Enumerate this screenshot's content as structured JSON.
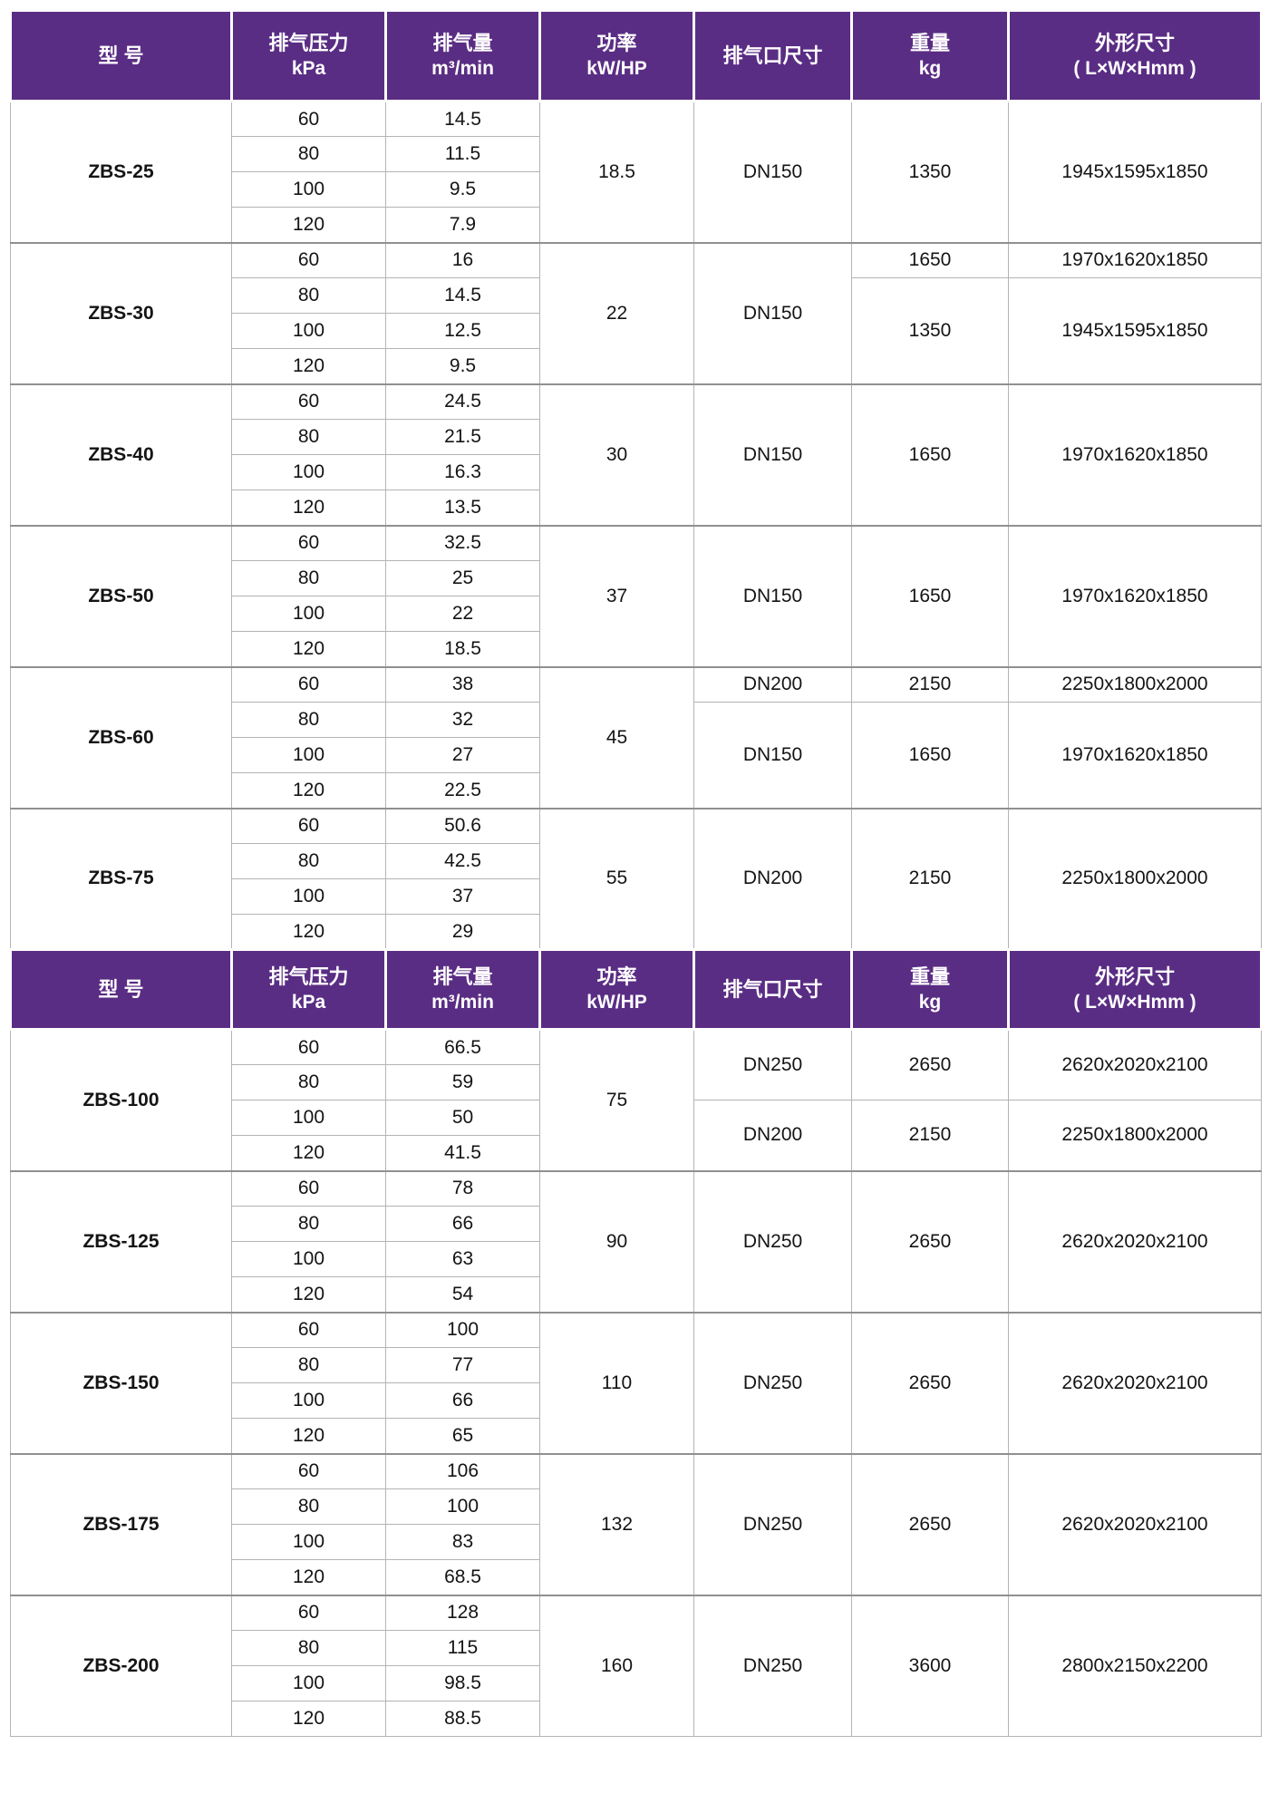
{
  "meta": {
    "header_bg_color": "#5A2D84",
    "model_text_color": "#42207B",
    "shade_row_color": "#efeef1"
  },
  "table": {
    "headers": [
      {
        "key": "model",
        "label": "型  号",
        "sub": ""
      },
      {
        "key": "pressure",
        "label": "排气压力",
        "sub": "kPa"
      },
      {
        "key": "flow",
        "label": "排气量",
        "sub": "m³/min"
      },
      {
        "key": "power",
        "label": "功率",
        "sub": "kW/HP"
      },
      {
        "key": "outlet",
        "label": "排气口尺寸",
        "sub": ""
      },
      {
        "key": "weight",
        "label": "重量",
        "sub": "kg"
      },
      {
        "key": "dimensions",
        "label": "外形尺寸",
        "sub": "( L×W×Hmm )"
      }
    ],
    "sections": [
      {
        "blocks": [
          {
            "model": "ZBS-25",
            "power": "18.5",
            "rows": [
              {
                "kpa": "60",
                "flow": "14.5"
              },
              {
                "kpa": "80",
                "flow": "11.5"
              },
              {
                "kpa": "100",
                "flow": "9.5"
              },
              {
                "kpa": "120",
                "flow": "7.9"
              }
            ],
            "dn": [
              {
                "span": 4,
                "v": "DN150"
              }
            ],
            "weight": [
              {
                "span": 4,
                "v": "1350"
              }
            ],
            "dims": [
              {
                "span": 4,
                "v": "1945x1595x1850"
              }
            ]
          },
          {
            "model": "ZBS-30",
            "power": "22",
            "rows": [
              {
                "kpa": "60",
                "flow": "16"
              },
              {
                "kpa": "80",
                "flow": "14.5"
              },
              {
                "kpa": "100",
                "flow": "12.5"
              },
              {
                "kpa": "120",
                "flow": "9.5"
              }
            ],
            "dn": [
              {
                "span": 4,
                "v": "DN150"
              }
            ],
            "weight": [
              {
                "span": 1,
                "v": "1650"
              },
              {
                "span": 3,
                "v": "1350"
              }
            ],
            "dims": [
              {
                "span": 1,
                "v": "1970x1620x1850"
              },
              {
                "span": 3,
                "v": "1945x1595x1850"
              }
            ]
          },
          {
            "model": "ZBS-40",
            "power": "30",
            "rows": [
              {
                "kpa": "60",
                "flow": "24.5"
              },
              {
                "kpa": "80",
                "flow": "21.5"
              },
              {
                "kpa": "100",
                "flow": "16.3"
              },
              {
                "kpa": "120",
                "flow": "13.5"
              }
            ],
            "dn": [
              {
                "span": 4,
                "v": "DN150"
              }
            ],
            "weight": [
              {
                "span": 4,
                "v": "1650"
              }
            ],
            "dims": [
              {
                "span": 4,
                "v": "1970x1620x1850"
              }
            ]
          },
          {
            "model": "ZBS-50",
            "power": "37",
            "rows": [
              {
                "kpa": "60",
                "flow": "32.5"
              },
              {
                "kpa": "80",
                "flow": "25"
              },
              {
                "kpa": "100",
                "flow": "22"
              },
              {
                "kpa": "120",
                "flow": "18.5"
              }
            ],
            "dn": [
              {
                "span": 4,
                "v": "DN150"
              }
            ],
            "weight": [
              {
                "span": 4,
                "v": "1650"
              }
            ],
            "dims": [
              {
                "span": 4,
                "v": "1970x1620x1850"
              }
            ]
          },
          {
            "model": "ZBS-60",
            "power": "45",
            "rows": [
              {
                "kpa": "60",
                "flow": "38"
              },
              {
                "kpa": "80",
                "flow": "32"
              },
              {
                "kpa": "100",
                "flow": "27"
              },
              {
                "kpa": "120",
                "flow": "22.5"
              }
            ],
            "dn": [
              {
                "span": 1,
                "v": "DN200"
              },
              {
                "span": 3,
                "v": "DN150"
              }
            ],
            "weight": [
              {
                "span": 1,
                "v": "2150"
              },
              {
                "span": 3,
                "v": "1650"
              }
            ],
            "dims": [
              {
                "span": 1,
                "v": "2250x1800x2000"
              },
              {
                "span": 3,
                "v": "1970x1620x1850"
              }
            ]
          },
          {
            "model": "ZBS-75",
            "power": "55",
            "rows": [
              {
                "kpa": "60",
                "flow": "50.6"
              },
              {
                "kpa": "80",
                "flow": "42.5"
              },
              {
                "kpa": "100",
                "flow": "37"
              },
              {
                "kpa": "120",
                "flow": "29"
              }
            ],
            "dn": [
              {
                "span": 4,
                "v": "DN200"
              }
            ],
            "weight": [
              {
                "span": 4,
                "v": "2150"
              }
            ],
            "dims": [
              {
                "span": 4,
                "v": "2250x1800x2000"
              }
            ]
          }
        ]
      },
      {
        "blocks": [
          {
            "model": "ZBS-100",
            "power": "75",
            "rows": [
              {
                "kpa": "60",
                "flow": "66.5"
              },
              {
                "kpa": "80",
                "flow": "59"
              },
              {
                "kpa": "100",
                "flow": "50"
              },
              {
                "kpa": "120",
                "flow": "41.5"
              }
            ],
            "dn": [
              {
                "span": 2,
                "v": "DN250"
              },
              {
                "span": 2,
                "v": "DN200"
              }
            ],
            "weight": [
              {
                "span": 2,
                "v": "2650"
              },
              {
                "span": 2,
                "v": "2150"
              }
            ],
            "dims": [
              {
                "span": 2,
                "v": "2620x2020x2100"
              },
              {
                "span": 2,
                "v": "2250x1800x2000"
              }
            ]
          },
          {
            "model": "ZBS-125",
            "power": "90",
            "rows": [
              {
                "kpa": "60",
                "flow": "78"
              },
              {
                "kpa": "80",
                "flow": "66"
              },
              {
                "kpa": "100",
                "flow": "63"
              },
              {
                "kpa": "120",
                "flow": "54"
              }
            ],
            "dn": [
              {
                "span": 4,
                "v": "DN250"
              }
            ],
            "weight": [
              {
                "span": 4,
                "v": "2650"
              }
            ],
            "dims": [
              {
                "span": 4,
                "v": "2620x2020x2100"
              }
            ]
          },
          {
            "model": "ZBS-150",
            "power": "110",
            "rows": [
              {
                "kpa": "60",
                "flow": "100"
              },
              {
                "kpa": "80",
                "flow": "77"
              },
              {
                "kpa": "100",
                "flow": "66"
              },
              {
                "kpa": "120",
                "flow": "65"
              }
            ],
            "dn": [
              {
                "span": 4,
                "v": "DN250"
              }
            ],
            "weight": [
              {
                "span": 4,
                "v": "2650"
              }
            ],
            "dims": [
              {
                "span": 4,
                "v": "2620x2020x2100"
              }
            ]
          },
          {
            "model": "ZBS-175",
            "power": "132",
            "rows": [
              {
                "kpa": "60",
                "flow": "106"
              },
              {
                "kpa": "80",
                "flow": "100"
              },
              {
                "kpa": "100",
                "flow": "83"
              },
              {
                "kpa": "120",
                "flow": "68.5"
              }
            ],
            "dn": [
              {
                "span": 4,
                "v": "DN250"
              }
            ],
            "weight": [
              {
                "span": 4,
                "v": "2650"
              }
            ],
            "dims": [
              {
                "span": 4,
                "v": "2620x2020x2100"
              }
            ]
          },
          {
            "model": "ZBS-200",
            "power": "160",
            "rows": [
              {
                "kpa": "60",
                "flow": "128"
              },
              {
                "kpa": "80",
                "flow": "115"
              },
              {
                "kpa": "100",
                "flow": "98.5"
              },
              {
                "kpa": "120",
                "flow": "88.5"
              }
            ],
            "dn": [
              {
                "span": 4,
                "v": "DN250"
              }
            ],
            "weight": [
              {
                "span": 4,
                "v": "3600"
              }
            ],
            "dims": [
              {
                "span": 4,
                "v": "2800x2150x2200"
              }
            ]
          }
        ]
      }
    ]
  }
}
